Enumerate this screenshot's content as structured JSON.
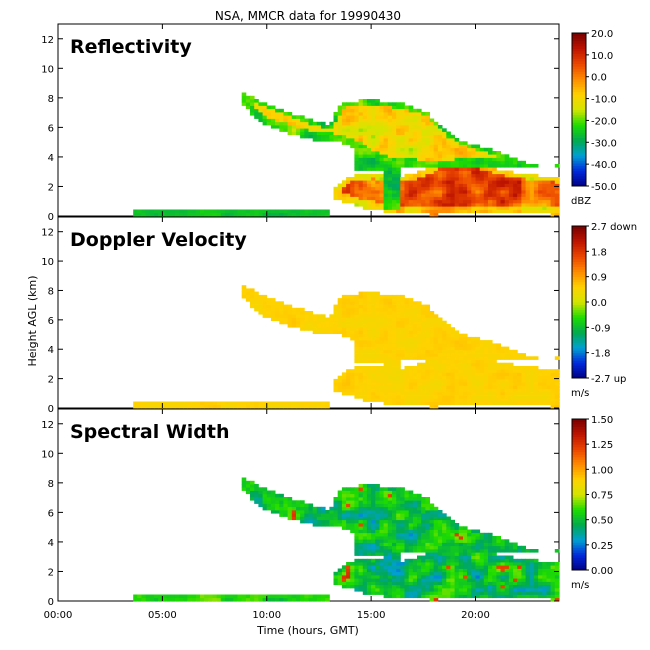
{
  "title": "NSA, MMCR data for 19990430",
  "ylabel": "Height AGL (km)",
  "xlabel": "Time (hours, GMT)",
  "chart_data": [
    {
      "type": "heatmap",
      "title": "Reflectivity",
      "xlabel": "Time (hours, GMT)",
      "ylabel": "Height AGL (km)",
      "xlim": [
        0,
        24
      ],
      "ylim": [
        0,
        13
      ],
      "x_ticks": [
        "00:00",
        "05:00",
        "10:00",
        "15:00",
        "20:00"
      ],
      "y_ticks": [
        0,
        2,
        4,
        6,
        8,
        10,
        12
      ],
      "colorbar": {
        "unit": "dBZ",
        "min": -50,
        "max": 20,
        "ticks": [
          "20.0",
          "10.0",
          "0.0",
          "-10.0",
          "-20.0",
          "-30.0",
          "-40.0",
          "-50.0"
        ]
      }
    },
    {
      "type": "heatmap",
      "title": "Doppler Velocity",
      "xlabel": "Time (hours, GMT)",
      "ylabel": "Height AGL (km)",
      "xlim": [
        0,
        24
      ],
      "ylim": [
        0,
        13
      ],
      "x_ticks": [
        "00:00",
        "05:00",
        "10:00",
        "15:00",
        "20:00"
      ],
      "y_ticks": [
        0,
        2,
        4,
        6,
        8,
        10,
        12
      ],
      "colorbar": {
        "unit": "m/s",
        "min": -2.7,
        "max": 2.7,
        "ticks": [
          "2.7 down",
          "1.8",
          "0.9",
          "0.0",
          "-0.9",
          "-1.8",
          "-2.7 up"
        ]
      }
    },
    {
      "type": "heatmap",
      "title": "Spectral Width",
      "xlabel": "Time (hours, GMT)",
      "ylabel": "Height AGL (km)",
      "xlim": [
        0,
        24
      ],
      "ylim": [
        0,
        13
      ],
      "x_ticks": [
        "00:00",
        "05:00",
        "10:00",
        "15:00",
        "20:00"
      ],
      "y_ticks": [
        0,
        2,
        4,
        6,
        8,
        10,
        12
      ],
      "colorbar": {
        "unit": "m/s",
        "min": 0,
        "max": 1.5,
        "ticks": [
          "1.50",
          "1.25",
          "1.00",
          "0.75",
          "0.50",
          "0.25",
          "0.00"
        ]
      }
    }
  ]
}
